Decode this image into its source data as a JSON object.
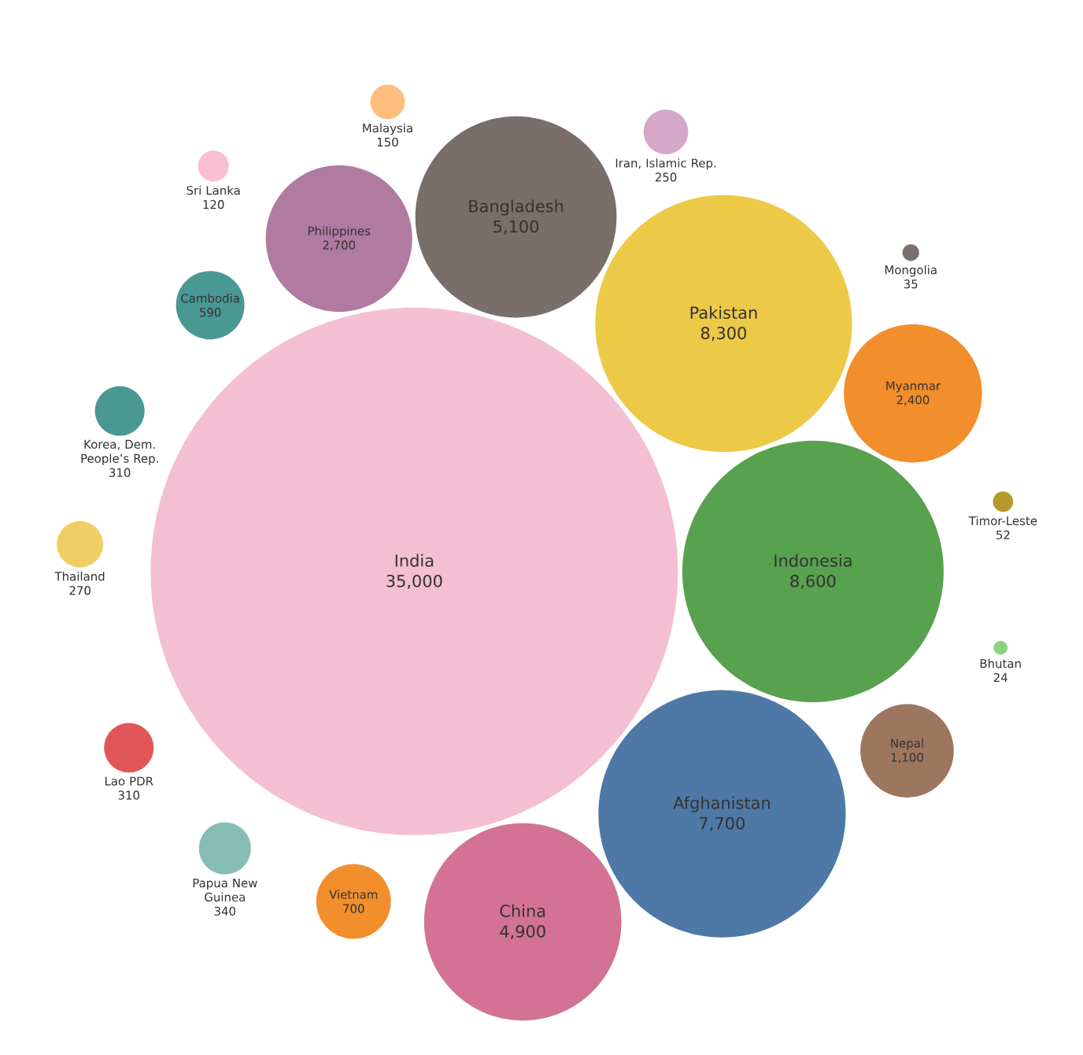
{
  "chart_data": {
    "type": "other",
    "categories": [
      "India",
      "Indonesia",
      "Pakistan",
      "Afghanistan",
      "Bangladesh",
      "China",
      "Philippines",
      "Myanmar",
      "Nepal",
      "Vietnam",
      "Cambodia",
      "Papua New Guinea",
      "Korea, Dem. People’s Rep.",
      "Lao PDR",
      "Thailand",
      "Iran, Islamic Rep.",
      "Malaysia",
      "Sri Lanka",
      "Timor-Leste",
      "Mongolia",
      "Bhutan"
    ],
    "values": [
      35000,
      8600,
      8300,
      7700,
      5100,
      4900,
      2700,
      2400,
      1100,
      700,
      590,
      340,
      310,
      310,
      270,
      250,
      150,
      120,
      52,
      35,
      24
    ],
    "value_labels": [
      "35,000",
      "8,600",
      "8,300",
      "7,700",
      "5,100",
      "4,900",
      "2,700",
      "2,400",
      "1,100",
      "700",
      "590",
      "340",
      "310",
      "310",
      "270",
      "250",
      "150",
      "120",
      "52",
      "35",
      "24"
    ],
    "colors": [
      "#f4bfd2",
      "#58a14e",
      "#edc948",
      "#4e79a7",
      "#7a6e6b",
      "#d37295",
      "#b07aa1",
      "#f28e2b",
      "#9d7660",
      "#f28e2b",
      "#499894",
      "#86bcb6",
      "#499894",
      "#e15759",
      "#f1ce63",
      "#d4a6c8",
      "#ffbe7d",
      "#fabfd2",
      "#b6992d",
      "#79706e",
      "#8cd17d"
    ]
  }
}
